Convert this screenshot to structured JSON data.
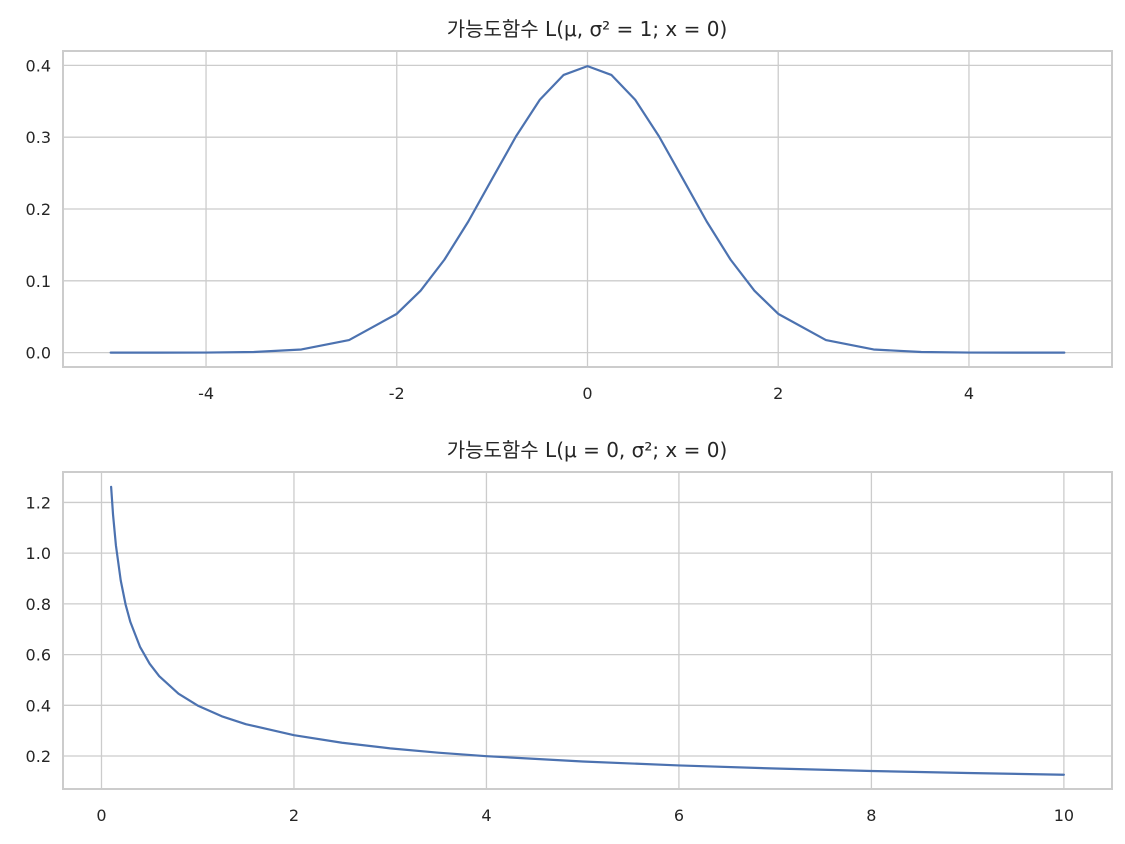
{
  "chart_data": [
    {
      "type": "line",
      "title": "가능도함수 L(μ, σ² = 1; x = 0)",
      "xlabel": "",
      "ylabel": "",
      "xlim": [
        -5.5,
        5.5
      ],
      "ylim": [
        -0.02,
        0.42
      ],
      "xticks": [
        -4,
        -2,
        0,
        2,
        4
      ],
      "xtick_labels": [
        "-4",
        "-2",
        "0",
        "2",
        "4"
      ],
      "yticks": [
        0.0,
        0.1,
        0.2,
        0.3,
        0.4
      ],
      "ytick_labels": [
        "0.0",
        "0.1",
        "0.2",
        "0.3",
        "0.4"
      ],
      "grid": true,
      "legend": "none",
      "color": "#4c72b0",
      "x": [
        -5.0,
        -4.5,
        -4.0,
        -3.5,
        -3.0,
        -2.5,
        -2.0,
        -1.75,
        -1.5,
        -1.25,
        -1.0,
        -0.75,
        -0.5,
        -0.25,
        0.0,
        0.25,
        0.5,
        0.75,
        1.0,
        1.25,
        1.5,
        1.75,
        2.0,
        2.5,
        3.0,
        3.5,
        4.0,
        4.5,
        5.0
      ],
      "y": [
        0.0,
        0.0,
        0.0001,
        0.0009,
        0.0044,
        0.0175,
        0.054,
        0.0863,
        0.1295,
        0.1826,
        0.242,
        0.3011,
        0.3521,
        0.3867,
        0.3989,
        0.3867,
        0.3521,
        0.3011,
        0.242,
        0.1826,
        0.1295,
        0.0863,
        0.054,
        0.0175,
        0.0044,
        0.0009,
        0.0001,
        0.0,
        0.0
      ]
    },
    {
      "type": "line",
      "title": "가능도함수 L(μ = 0, σ²; x = 0)",
      "xlabel": "",
      "ylabel": "",
      "xlim": [
        -0.4,
        10.5
      ],
      "ylim": [
        0.07,
        1.32
      ],
      "xticks": [
        0,
        2,
        4,
        6,
        8,
        10
      ],
      "xtick_labels": [
        "0",
        "2",
        "4",
        "6",
        "8",
        "10"
      ],
      "yticks": [
        0.2,
        0.4,
        0.6,
        0.8,
        1.0,
        1.2
      ],
      "ytick_labels": [
        "0.2",
        "0.4",
        "0.6",
        "0.8",
        "1.0",
        "1.2"
      ],
      "grid": true,
      "legend": "none",
      "color": "#4c72b0",
      "x": [
        0.1,
        0.12,
        0.15,
        0.2,
        0.25,
        0.3,
        0.4,
        0.5,
        0.6,
        0.8,
        1.0,
        1.25,
        1.5,
        2.0,
        2.5,
        3.0,
        3.5,
        4.0,
        5.0,
        6.0,
        7.0,
        8.0,
        9.0,
        10.0
      ],
      "y": [
        1.2616,
        1.1517,
        1.0301,
        0.8921,
        0.7979,
        0.7284,
        0.6308,
        0.5642,
        0.515,
        0.446,
        0.3989,
        0.3568,
        0.3257,
        0.2821,
        0.2523,
        0.2303,
        0.2132,
        0.1995,
        0.1784,
        0.1629,
        0.1508,
        0.141,
        0.133,
        0.1262
      ]
    }
  ]
}
